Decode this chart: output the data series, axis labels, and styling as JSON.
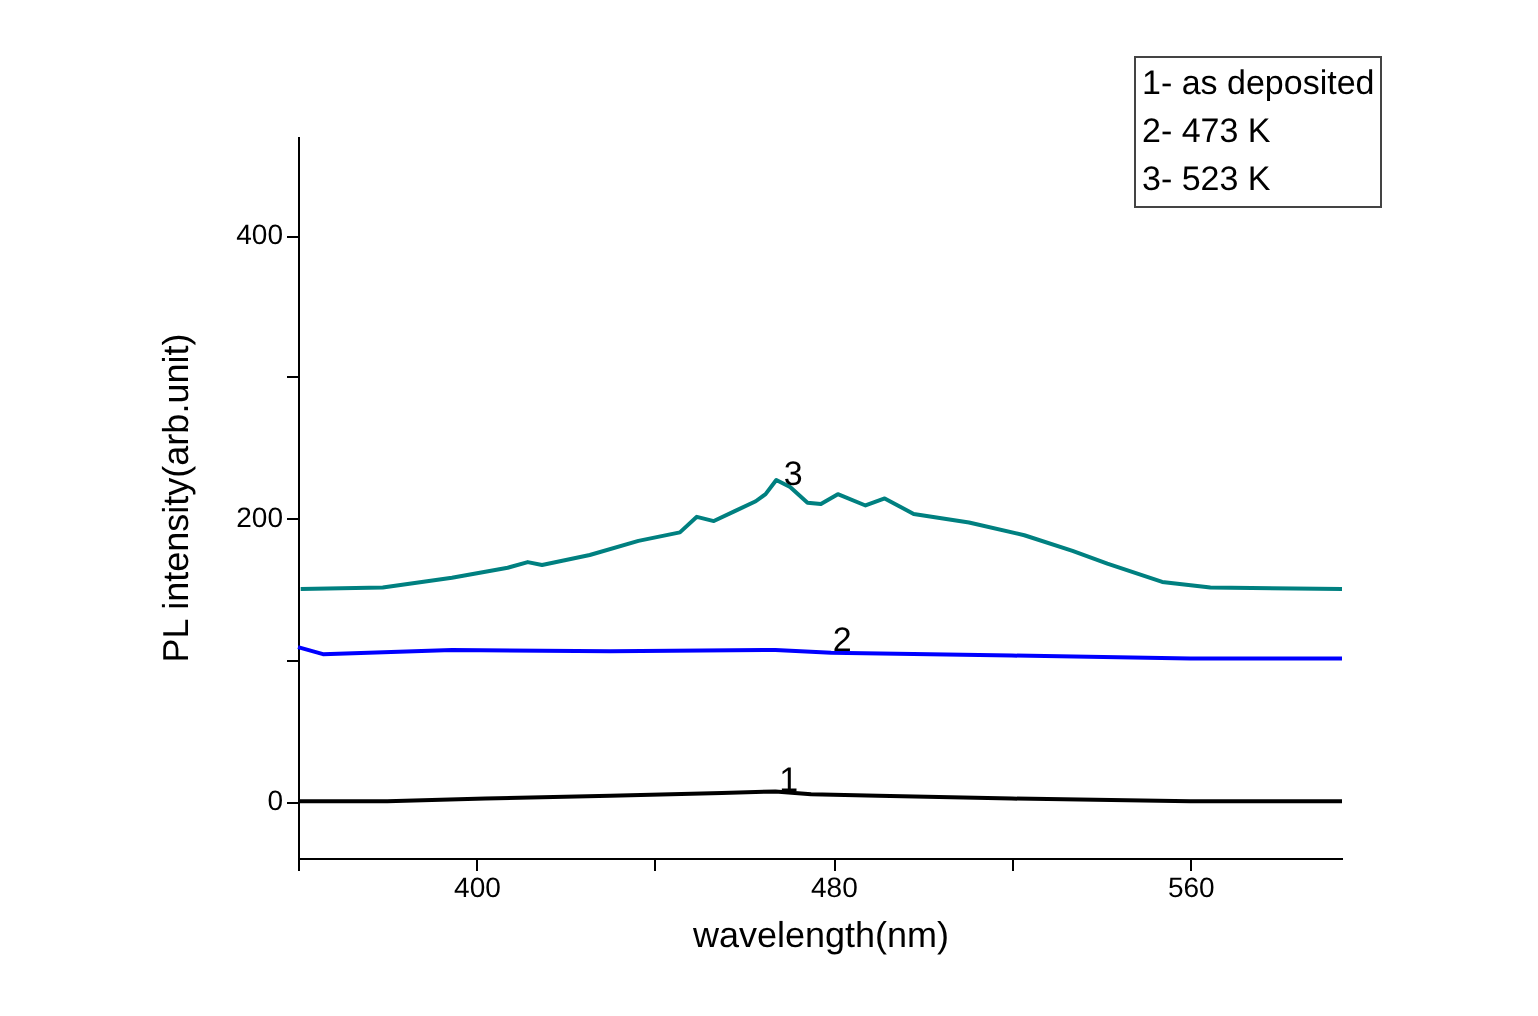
{
  "chart_data": {
    "type": "line",
    "xlabel": "wavelength(nm)",
    "ylabel": "PL intensity(arb.unit)",
    "xlim": [
      360,
      594
    ],
    "xticks": [
      {
        "value": 360,
        "label": null
      },
      400,
      {
        "value": 440,
        "label": null
      },
      480,
      {
        "value": 520,
        "label": null
      },
      560
    ],
    "ylim": [
      -40,
      470
    ],
    "yticks": [
      0,
      {
        "value": 100,
        "label": null
      },
      200,
      {
        "value": 300,
        "label": null
      },
      400
    ],
    "grid": false,
    "legend": false,
    "marker": "none",
    "line_style": "solid",
    "series": [
      {
        "color": "#000000",
        "x": [
          360,
          380,
          402,
          430,
          455,
          467,
          475,
          490,
          520,
          560,
          594
        ],
        "values": [
          0,
          0,
          2,
          4,
          6,
          7,
          5,
          4,
          2,
          0,
          0
        ]
      },
      {
        "color": "#0000ff",
        "x": [
          360,
          365.6,
          394.5,
          430,
          467,
          479.5,
          520,
          560,
          594
        ],
        "values": [
          109,
          104,
          107,
          106,
          107,
          105,
          103,
          101,
          101
        ]
      },
      {
        "color": "#008080",
        "x": [
          360.6,
          379,
          394.5,
          407,
          411.5,
          414.7,
          425.4,
          436.3,
          445.6,
          449.4,
          453.2,
          457.9,
          462.6,
          464.8,
          467.2,
          470.3,
          474.2,
          477.2,
          481,
          487.2,
          491.5,
          498,
          510.4,
          522.8,
          533.6,
          541.4,
          553.7,
          564.5,
          594
        ],
        "values": [
          150,
          151,
          158,
          165,
          169,
          167,
          174,
          184,
          190,
          201,
          198,
          205,
          212,
          217,
          227,
          222,
          211,
          210,
          217,
          209,
          214,
          203,
          197,
          188,
          177,
          168,
          155,
          151,
          150
        ]
      }
    ],
    "annotations": [
      {
        "text": "1",
        "x": 470,
        "y": 6
      },
      {
        "text": "2",
        "x": 482,
        "y": 105
      },
      {
        "text": "3",
        "x": 471,
        "y": 222
      },
      "1- as deposited",
      "2- 473 K",
      "3- 523 K"
    ]
  }
}
